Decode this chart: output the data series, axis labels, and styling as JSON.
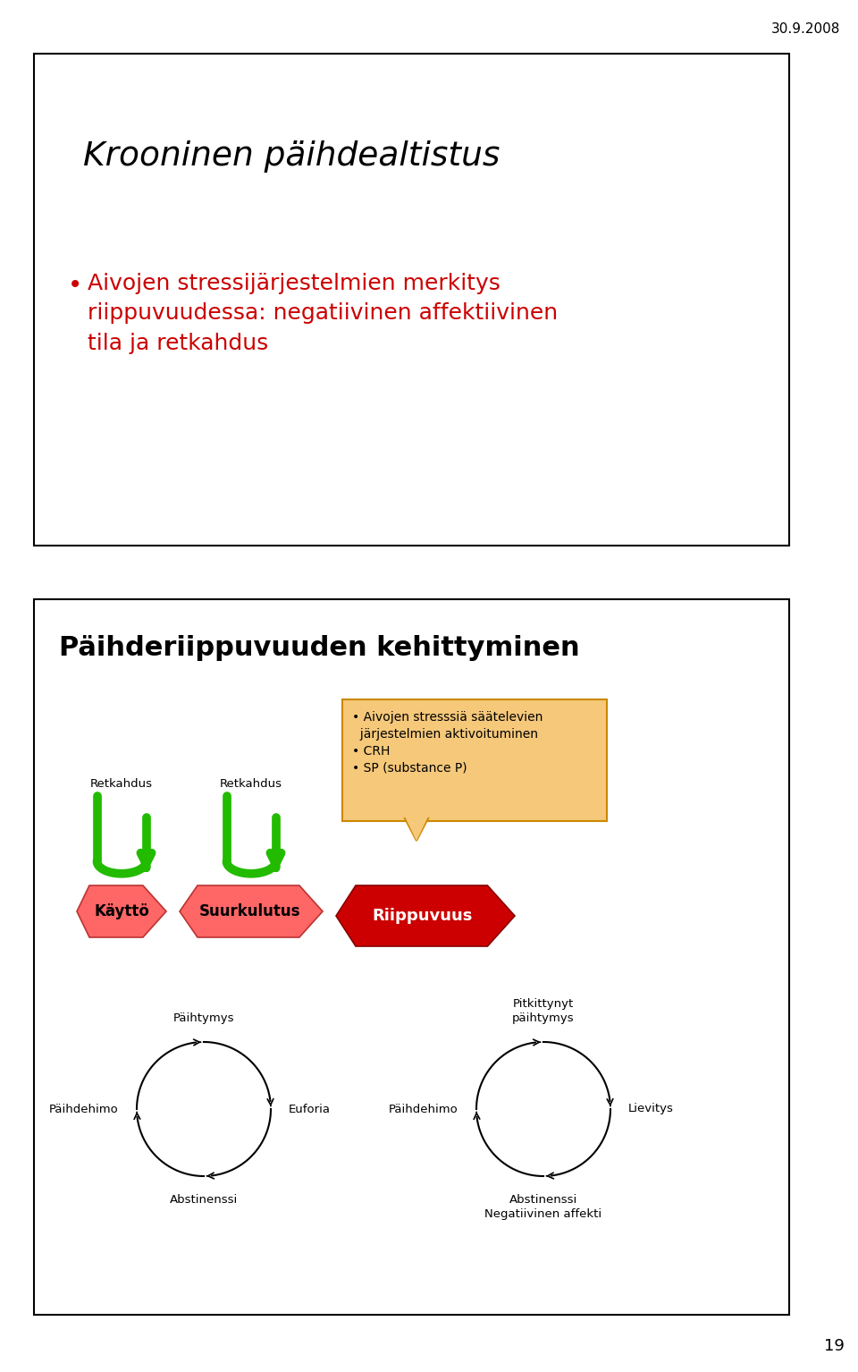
{
  "date_label": "30.9.2008",
  "page_number": "19",
  "bg_color": "#ffffff",
  "slide1_title": "Krooninen päihdealtistus",
  "slide1_bullet": "Aivojen stressijärjestelmien merkitys\nriippuvuudessa: negatiivinen affektiivinen\ntila ja retkahdus",
  "slide1_bullet_color": "#cc0000",
  "slide2_title": "Päihderiippuvuuden kehittyminen",
  "retkahdus": "Retkahdus",
  "arrow1_label": "Käyttö",
  "arrow2_label": "Suurkulutus",
  "arrow3_label": "Riippuvuus",
  "callout_line1": "• Aivojen stresssiä säätelevien",
  "callout_line2": "  järjestelmien aktivoituminen",
  "callout_line3": "• CRH",
  "callout_line4": "• SP (substance P)",
  "callout_bg": "#f5c87a",
  "callout_border": "#cc8800",
  "green_color": "#22bb00",
  "red_light": "#ff6666",
  "red_dark": "#cc0000",
  "cycle1_top": "Päihtymys",
  "cycle1_right": "Euforia",
  "cycle1_bottom": "Abstinenssi",
  "cycle1_left": "Päihdehimo",
  "cycle2_top": "Pitkittynyt\npäihtymys",
  "cycle2_right": "Lievitys",
  "cycle2_bottom": "Abstinenssi\nNegatiivinen affekti",
  "cycle2_left": "Päihdehimo"
}
